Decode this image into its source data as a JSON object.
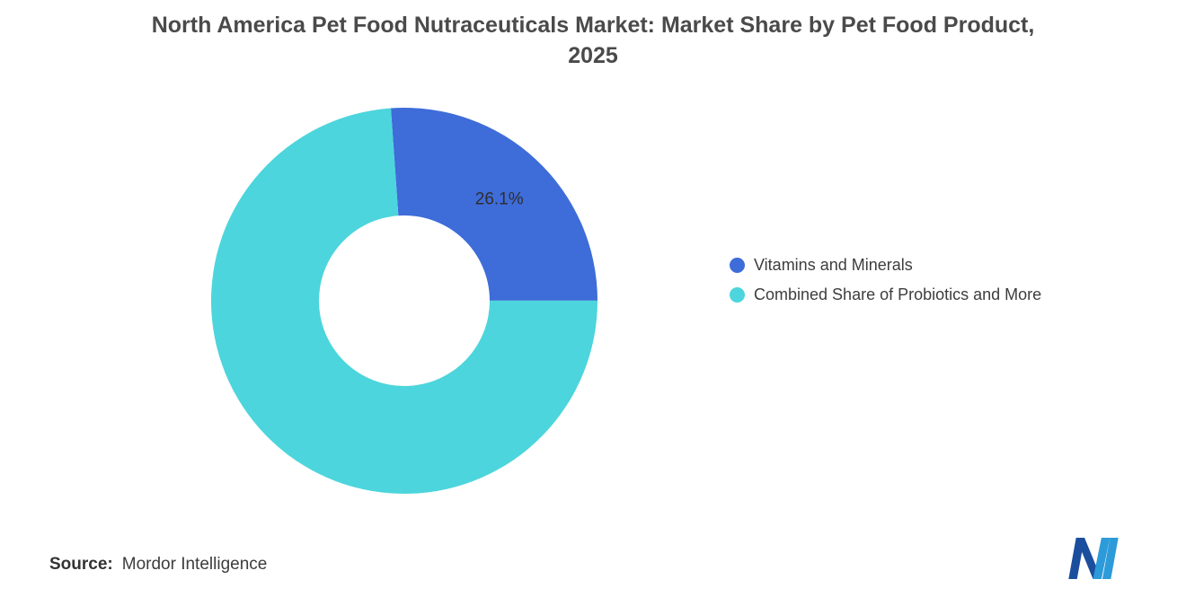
{
  "title": "North America Pet Food Nutraceuticals Market: Market Share by Pet Food Product, 2025",
  "chart_data": {
    "type": "pie",
    "donut": true,
    "title": "North America Pet Food Nutraceuticals Market: Market Share by Pet Food Product, 2025",
    "start_angle_deg": -4,
    "legend_position": "right",
    "slices": [
      {
        "label": "Vitamins and Minerals",
        "value": 26.1,
        "data_label": "26.1%",
        "color": "#3e6cd9"
      },
      {
        "label": "Combined Share of Probiotics and More",
        "value": 73.9,
        "data_label": "",
        "color": "#4cd5dc"
      }
    ]
  },
  "source": {
    "label": "Source:",
    "text": "Mordor Intelligence"
  },
  "logo": {
    "name": "mordor-intelligence-logo",
    "color_dark": "#1c4e9e",
    "color_light": "#2d9bd9"
  }
}
